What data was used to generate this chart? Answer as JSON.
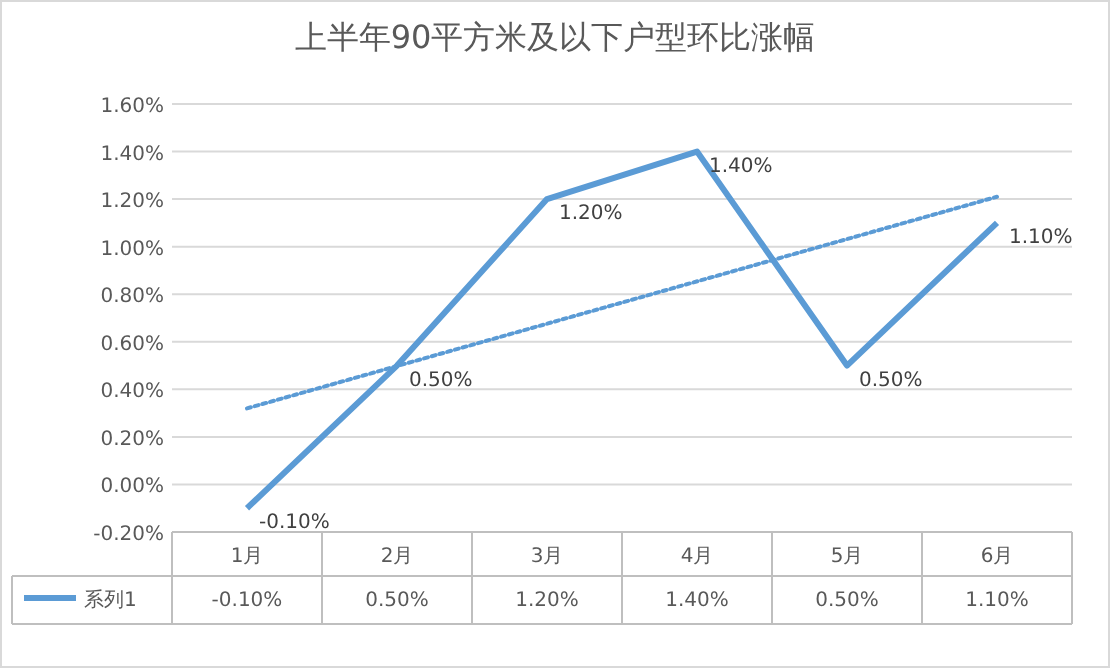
{
  "chart_data": {
    "type": "line",
    "title": "上半年90平方米及以下户型环比涨幅",
    "categories": [
      "1月",
      "2月",
      "3月",
      "4月",
      "5月",
      "6月"
    ],
    "series": [
      {
        "name": "系列1",
        "color": "#5b9bd5",
        "values": [
          -0.1,
          0.5,
          1.2,
          1.4,
          0.5,
          1.1
        ],
        "value_labels": [
          "-0.10%",
          "0.50%",
          "1.20%",
          "1.40%",
          "0.50%",
          "1.10%"
        ]
      },
      {
        "type": "line",
        "color": "#5b9bd5",
        "line_style": "dotted",
        "x": [
          "1月",
          "6月"
        ],
        "values": [
          0.32,
          1.21
        ]
      }
    ],
    "ylim": [
      -0.2,
      1.6
    ],
    "yticks": [
      {
        "value": -0.2,
        "label": "-0.20%"
      },
      {
        "value": 0,
        "label": "0.00%"
      },
      {
        "value": 0.2,
        "label": "0.20%"
      },
      {
        "value": 0.4,
        "label": "0.40%"
      },
      {
        "value": 0.6,
        "label": "0.60%"
      },
      {
        "value": 0.8,
        "label": "0.80%"
      },
      {
        "value": 1.0,
        "label": "1.00%"
      },
      {
        "value": 1.2,
        "label": "1.20%"
      },
      {
        "value": 1.4,
        "label": "1.40%"
      },
      {
        "value": 1.6,
        "label": "1.60%"
      }
    ],
    "grid": "y",
    "legend": "bottom",
    "marker": "none",
    "line_style": "solid"
  }
}
